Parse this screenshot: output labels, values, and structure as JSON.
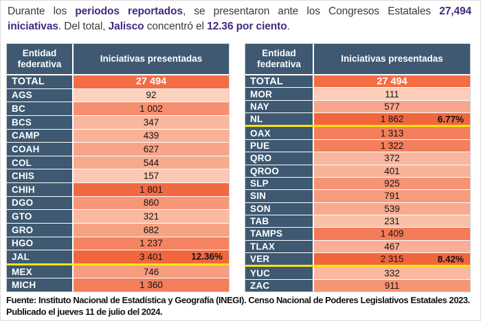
{
  "title": {
    "segments": [
      {
        "text": "Durante los ",
        "bold": false
      },
      {
        "text": "periodos reportados",
        "bold": true
      },
      {
        "text": ", se presentaron ante los Congresos Estatales ",
        "bold": false
      },
      {
        "text": "27,494 iniciativas",
        "bold": true
      },
      {
        "text": ". Del total, ",
        "bold": false
      },
      {
        "text": "Jalisco",
        "bold": true
      },
      {
        "text": " concentró el ",
        "bold": false
      },
      {
        "text": "12.36 por ciento",
        "bold": true
      },
      {
        "text": ".",
        "bold": false
      }
    ]
  },
  "tables": [
    {
      "headers": [
        "Entidad federativa",
        "Iniciativas presentadas"
      ],
      "rows": [
        {
          "entity": "TOTAL",
          "value": "27 494",
          "num": 27494,
          "total": true
        },
        {
          "entity": "AGS",
          "value": "92",
          "num": 92
        },
        {
          "entity": "BC",
          "value": "1 002",
          "num": 1002
        },
        {
          "entity": "BCS",
          "value": "347",
          "num": 347
        },
        {
          "entity": "CAMP",
          "value": "439",
          "num": 439
        },
        {
          "entity": "COAH",
          "value": "627",
          "num": 627
        },
        {
          "entity": "COL",
          "value": "544",
          "num": 544
        },
        {
          "entity": "CHIS",
          "value": "157",
          "num": 157
        },
        {
          "entity": "CHIH",
          "value": "1 801",
          "num": 1801
        },
        {
          "entity": "DGO",
          "value": "860",
          "num": 860
        },
        {
          "entity": "GTO",
          "value": "321",
          "num": 321
        },
        {
          "entity": "GRO",
          "value": "682",
          "num": 682
        },
        {
          "entity": "HGO",
          "value": "1 237",
          "num": 1237
        },
        {
          "entity": "JAL",
          "value": "3 401",
          "num": 3401,
          "pct": "12.36%",
          "highlight": true
        },
        {
          "entity": "MEX",
          "value": "746",
          "num": 746
        },
        {
          "entity": "MICH",
          "value": "1 360",
          "num": 1360
        }
      ]
    },
    {
      "headers": [
        "Entidad federativa",
        "Iniciativas presentadas"
      ],
      "rows": [
        {
          "entity": "TOTAL",
          "value": "27 494",
          "num": 27494,
          "total": true
        },
        {
          "entity": "MOR",
          "value": "111",
          "num": 111
        },
        {
          "entity": "NAY",
          "value": "577",
          "num": 577
        },
        {
          "entity": "NL",
          "value": "1 862",
          "num": 1862,
          "pct": "6.77%",
          "highlight": true
        },
        {
          "entity": "OAX",
          "value": "1 313",
          "num": 1313
        },
        {
          "entity": "PUE",
          "value": "1 322",
          "num": 1322
        },
        {
          "entity": "QRO",
          "value": "372",
          "num": 372
        },
        {
          "entity": "QROO",
          "value": "401",
          "num": 401
        },
        {
          "entity": "SLP",
          "value": "925",
          "num": 925
        },
        {
          "entity": "SIN",
          "value": "791",
          "num": 791
        },
        {
          "entity": "SON",
          "value": "539",
          "num": 539
        },
        {
          "entity": "TAB",
          "value": "231",
          "num": 231
        },
        {
          "entity": "TAMPS",
          "value": "1 409",
          "num": 1409
        },
        {
          "entity": "TLAX",
          "value": "467",
          "num": 467
        },
        {
          "entity": "VER",
          "value": "2 315",
          "num": 2315,
          "pct": "8.42%",
          "highlight": true
        },
        {
          "entity": "YUC",
          "value": "332",
          "num": 332
        },
        {
          "entity": "ZAC",
          "value": "911",
          "num": 911
        }
      ]
    }
  ],
  "footer": {
    "line1": "Fuente: Instituto Nacional de Estadística y Geografía (INEGI). Censo Nacional de Poderes Legislativos Estatales 2023.",
    "line2": "Publicado el jueves 11 de julio del 2024."
  },
  "colors": {
    "header_bg": "#3E5971",
    "total_bg": "#F36C44",
    "scale_dark": "#F2663E",
    "scale_light": "#FCD2BF",
    "highlight_line": "#FFE800",
    "accent_purple": "#43297F"
  }
}
